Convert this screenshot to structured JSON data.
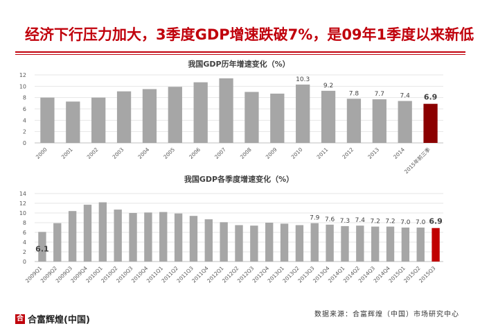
{
  "headline": "经济下行压力加大，3季度GDP增速跌破7%，是09年1季度以来新低",
  "source_note": "数据来源：合富辉煌（中国）市场研究中心",
  "logo_text": "合富辉煌(中国)",
  "colors": {
    "headline": "#c0000b",
    "bar_gray": "#a6a6a6",
    "bar_annual_latest": "#8b0000",
    "bar_quarterly_latest": "#c00000",
    "axis_text": "#595959"
  },
  "chart_data": [
    {
      "type": "bar",
      "title": "我国GDP历年增速变化（%）",
      "categories": [
        "2000",
        "2001",
        "2002",
        "2003",
        "2004",
        "2005",
        "2006",
        "2007",
        "2008",
        "2009",
        "2010",
        "2011",
        "2012",
        "2013",
        "2014",
        "2015年前三季"
      ],
      "values": [
        8.0,
        7.3,
        8.0,
        9.1,
        9.5,
        9.9,
        10.7,
        11.4,
        9.0,
        8.7,
        10.3,
        9.2,
        7.8,
        7.7,
        7.4,
        6.9
      ],
      "data_labels": [
        "",
        "",
        "",
        "",
        "",
        "",
        "",
        "",
        "",
        "",
        "10.3",
        "9.2",
        "7.8",
        "7.7",
        "7.4",
        "6.9"
      ],
      "ylim": [
        0,
        12
      ],
      "yticks": [
        0,
        2,
        4,
        6,
        8,
        10,
        12
      ],
      "highlight_last": true
    },
    {
      "type": "bar",
      "title": "我国GDP各季度增速变化（%）",
      "categories": [
        "2009Q1",
        "2009Q2",
        "2009Q3",
        "2009Q4",
        "2010Q1",
        "2010Q2",
        "2010Q3",
        "2010Q4",
        "2011Q1",
        "2011Q2",
        "2011Q3",
        "2011Q4",
        "2012Q1",
        "2012Q2",
        "2012Q3",
        "2012Q4",
        "2013Q1",
        "2013Q2",
        "2013Q3",
        "2013Q4",
        "2014Q1",
        "2014Q2",
        "2014Q3",
        "2014Q4",
        "2015Q1",
        "2015Q2",
        "2015Q3"
      ],
      "values": [
        6.1,
        7.9,
        10.4,
        11.7,
        12.2,
        10.7,
        10.0,
        10.1,
        10.2,
        9.9,
        9.4,
        8.7,
        8.1,
        7.5,
        7.4,
        8.0,
        7.8,
        7.5,
        7.9,
        7.6,
        7.3,
        7.4,
        7.2,
        7.2,
        7.0,
        7.0,
        6.9
      ],
      "data_labels": [
        "6.1",
        "",
        "",
        "",
        "",
        "",
        "",
        "",
        "",
        "",
        "",
        "",
        "",
        "",
        "",
        "",
        "",
        "",
        "7.9",
        "7.6",
        "7.3",
        "7.4",
        "7.2",
        "7.2",
        "7.0",
        "7.0",
        "6.9"
      ],
      "ylim": [
        0,
        14
      ],
      "yticks": [
        0,
        2,
        4,
        6,
        8,
        10,
        12,
        14
      ],
      "highlight_last": true
    }
  ]
}
